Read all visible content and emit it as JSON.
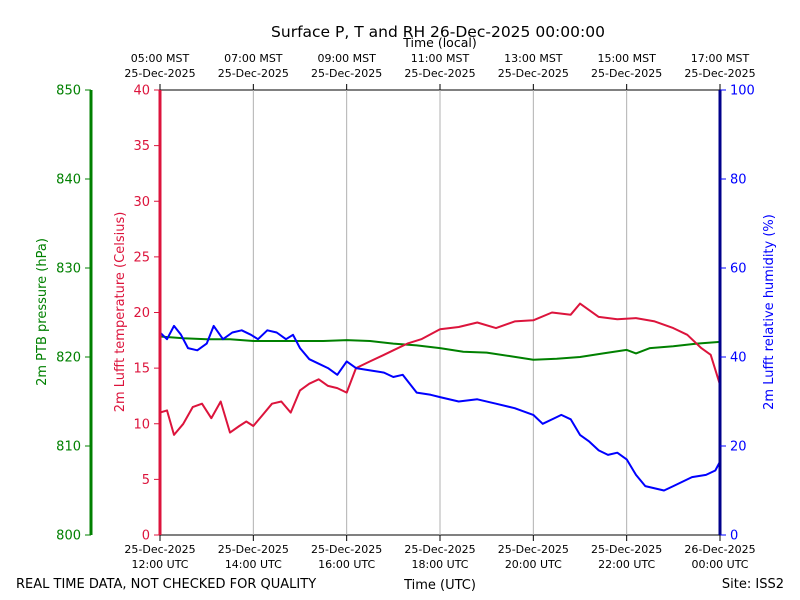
{
  "chart_data": {
    "type": "line",
    "title": "Surface P, T and RH 26-Dec-2025 00:00:00",
    "top_axis_title": "Time (local)",
    "xlabel": "Time (UTC)",
    "footer_left": "REAL TIME DATA, NOT CHECKED FOR QUALITY",
    "footer_right": "Site: ISS2",
    "x_range_hours": [
      12,
      24
    ],
    "x_ticks_utc": [
      {
        "hour": 12,
        "date": "25-Dec-2025",
        "time": "12:00 UTC"
      },
      {
        "hour": 14,
        "date": "25-Dec-2025",
        "time": "14:00 UTC"
      },
      {
        "hour": 16,
        "date": "25-Dec-2025",
        "time": "16:00 UTC"
      },
      {
        "hour": 18,
        "date": "25-Dec-2025",
        "time": "18:00 UTC"
      },
      {
        "hour": 20,
        "date": "25-Dec-2025",
        "time": "20:00 UTC"
      },
      {
        "hour": 22,
        "date": "25-Dec-2025",
        "time": "22:00 UTC"
      },
      {
        "hour": 24,
        "date": "26-Dec-2025",
        "time": "00:00 UTC"
      }
    ],
    "x_ticks_local": [
      {
        "hour": 12,
        "time": "05:00 MST",
        "date": "25-Dec-2025"
      },
      {
        "hour": 14,
        "time": "07:00 MST",
        "date": "25-Dec-2025"
      },
      {
        "hour": 16,
        "time": "09:00 MST",
        "date": "25-Dec-2025"
      },
      {
        "hour": 18,
        "time": "11:00 MST",
        "date": "25-Dec-2025"
      },
      {
        "hour": 20,
        "time": "13:00 MST",
        "date": "25-Dec-2025"
      },
      {
        "hour": 22,
        "time": "15:00 MST",
        "date": "25-Dec-2025"
      },
      {
        "hour": 24,
        "time": "17:00 MST",
        "date": "25-Dec-2025"
      }
    ],
    "axes": {
      "pressure": {
        "label": "2m PTB pressure (hPa)",
        "range": [
          800,
          850
        ],
        "ticks": [
          800,
          810,
          820,
          830,
          840,
          850
        ],
        "color": "#008000"
      },
      "temperature": {
        "label": "2m Lufft temperature (Celsius)",
        "range": [
          0,
          40
        ],
        "ticks": [
          0,
          5,
          10,
          15,
          20,
          25,
          30,
          35,
          40
        ],
        "color": "#dc143c"
      },
      "humidity": {
        "label": "2m Lufft relative humidity (%)",
        "range": [
          0,
          100
        ],
        "ticks": [
          0,
          20,
          40,
          60,
          80,
          100
        ],
        "color": "#0000ff"
      }
    },
    "series": [
      {
        "name": "2m PTB pressure (hPa)",
        "axis": "pressure",
        "color": "#008000",
        "x": [
          12.0,
          12.5,
          13.0,
          13.5,
          14.0,
          14.5,
          15.0,
          15.5,
          16.0,
          16.5,
          17.0,
          17.5,
          18.0,
          18.5,
          19.0,
          19.5,
          20.0,
          20.5,
          21.0,
          21.5,
          22.0,
          22.2,
          22.5,
          23.0,
          23.5,
          24.0
        ],
        "y": [
          822.3,
          822.1,
          822.0,
          822.0,
          821.8,
          821.8,
          821.8,
          821.8,
          821.9,
          821.8,
          821.5,
          821.3,
          821.0,
          820.6,
          820.5,
          820.1,
          819.7,
          819.8,
          820.0,
          820.4,
          820.8,
          820.4,
          821.0,
          821.2,
          821.5,
          821.7
        ]
      },
      {
        "name": "2m Lufft temperature (Celsius)",
        "axis": "temperature",
        "color": "#dc143c",
        "x": [
          12.0,
          12.15,
          12.3,
          12.5,
          12.7,
          12.9,
          13.1,
          13.3,
          13.5,
          13.7,
          13.85,
          14.0,
          14.2,
          14.4,
          14.6,
          14.8,
          15.0,
          15.2,
          15.4,
          15.6,
          15.8,
          16.0,
          16.2,
          16.5,
          16.8,
          17.0,
          17.3,
          17.6,
          18.0,
          18.4,
          18.8,
          19.2,
          19.6,
          20.0,
          20.4,
          20.8,
          21.0,
          21.4,
          21.8,
          22.2,
          22.6,
          23.0,
          23.3,
          23.6,
          23.8,
          24.0
        ],
        "y": [
          11.0,
          11.2,
          9.0,
          10.0,
          11.5,
          11.8,
          10.5,
          12.0,
          9.2,
          9.8,
          10.2,
          9.8,
          10.8,
          11.8,
          12.0,
          11.0,
          13.0,
          13.6,
          14.0,
          13.4,
          13.2,
          12.8,
          15.0,
          15.6,
          16.2,
          16.6,
          17.2,
          17.6,
          18.5,
          18.7,
          19.1,
          18.6,
          19.2,
          19.3,
          20.0,
          19.8,
          20.8,
          19.6,
          19.4,
          19.5,
          19.2,
          18.6,
          18.0,
          16.8,
          16.2,
          13.5
        ]
      },
      {
        "name": "2m Lufft relative humidity (%)",
        "axis": "humidity",
        "color": "#0000ff",
        "x": [
          12.0,
          12.15,
          12.3,
          12.45,
          12.6,
          12.8,
          13.0,
          13.15,
          13.35,
          13.55,
          13.75,
          13.95,
          14.1,
          14.3,
          14.5,
          14.7,
          14.85,
          15.0,
          15.2,
          15.4,
          15.6,
          15.8,
          16.0,
          16.2,
          16.5,
          16.8,
          17.0,
          17.2,
          17.5,
          17.8,
          18.0,
          18.4,
          18.8,
          19.2,
          19.6,
          20.0,
          20.2,
          20.5,
          20.6,
          20.8,
          21.0,
          21.2,
          21.4,
          21.6,
          21.8,
          22.0,
          22.2,
          22.4,
          22.8,
          23.0,
          23.4,
          23.7,
          23.9,
          24.0
        ],
        "y": [
          45.5,
          44.0,
          47.0,
          45.0,
          42.0,
          41.5,
          43.0,
          47.0,
          44.0,
          45.5,
          46.0,
          45.0,
          44.0,
          46.0,
          45.5,
          44.0,
          45.0,
          42.0,
          39.5,
          38.5,
          37.5,
          36.0,
          39.0,
          37.5,
          37.0,
          36.5,
          35.5,
          36.0,
          32.0,
          31.5,
          31.0,
          30.0,
          30.5,
          29.5,
          28.5,
          27.0,
          25.0,
          26.5,
          27.0,
          26.0,
          22.5,
          21.0,
          19.0,
          18.0,
          18.5,
          17.0,
          13.5,
          11.0,
          10.0,
          11.0,
          13.0,
          13.5,
          14.5,
          16.5
        ]
      }
    ]
  }
}
